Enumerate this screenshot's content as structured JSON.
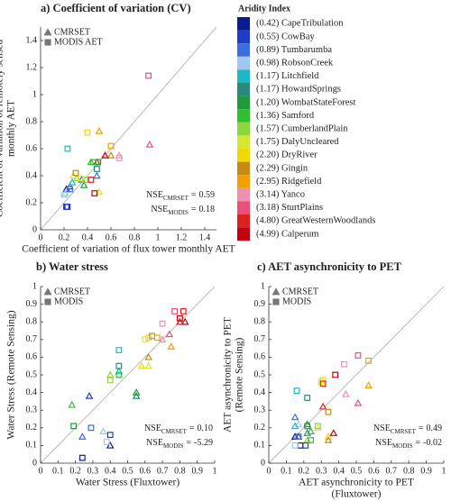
{
  "chart_data": [
    {
      "type": "scatter",
      "title": "a)   Coefficient of variation (CV)",
      "xlabel": [
        "Coefficient of variation of flux tower monthly AET"
      ],
      "ylabel": [
        "Coefficient of variation of remotely sensed",
        "monthly AET"
      ],
      "xlim": [
        0,
        1.5
      ],
      "ylim": [
        0,
        1.5
      ],
      "xticks": [
        0,
        0.2,
        0.4,
        0.6,
        0.8,
        1,
        1.2,
        1.4
      ],
      "yticks": [
        0,
        0.2,
        0.4,
        0.6,
        0.8,
        1,
        1.2,
        1.4
      ],
      "legend": "upper left",
      "series": [
        {
          "name": "CMRSET",
          "marker": "triangle",
          "color": "#777777",
          "x": [
            0.22,
            0.25,
            0.48,
            0.21,
            0.27,
            0.35,
            0.37,
            0.43,
            0.31,
            0.28,
            0.5,
            0.6,
            0.5,
            0.67,
            0.93,
            0.48,
            0.55
          ],
          "values": [
            0.3,
            0.32,
            0.4,
            0.27,
            0.35,
            0.37,
            0.33,
            0.5,
            0.38,
            0.4,
            0.28,
            0.55,
            0.73,
            0.55,
            0.63,
            0.5,
            0.55
          ]
        },
        {
          "name": "MODIS AET",
          "marker": "square",
          "color": "#777777",
          "x": [
            0.22,
            0.23,
            0.25,
            0.2,
            0.23,
            0.48,
            0.49,
            0.45,
            0.38,
            0.34,
            0.4,
            0.3,
            0.6,
            0.67,
            0.92,
            0.43,
            0.46
          ],
          "values": [
            0.17,
            0.17,
            0.3,
            0.26,
            0.6,
            0.45,
            0.5,
            0.5,
            0.37,
            0.38,
            0.72,
            0.42,
            0.62,
            0.53,
            1.14,
            0.37,
            0.27
          ]
        }
      ],
      "annotations": [
        {
          "label": "NSE",
          "subscript": "CMRSET",
          "sign": "=",
          "value": "0.59"
        },
        {
          "label": "NSE",
          "subscript": "MODIS",
          "sign": "=",
          "value": "0.18"
        }
      ]
    },
    {
      "type": "scatter",
      "title": "b) Water stress",
      "xlabel": [
        "Water Stress (Fluxtower)"
      ],
      "ylabel": [
        "Water Stress (Remote Sensing)"
      ],
      "xlim": [
        0,
        1
      ],
      "ylim": [
        0,
        1
      ],
      "xticks": [
        0,
        0.1,
        0.2,
        0.3,
        0.4,
        0.5,
        0.6,
        0.7,
        0.8,
        0.9,
        1
      ],
      "yticks": [
        0,
        0.1,
        0.2,
        0.3,
        0.4,
        0.5,
        0.6,
        0.7,
        0.8,
        0.9,
        1
      ],
      "legend": "upper left",
      "series": [
        {
          "name": "CMRSET",
          "marker": "triangle",
          "color": "#777777",
          "x": [
            0.4,
            0.28,
            0.24,
            0.36,
            0.45,
            0.55,
            0.55,
            0.18,
            0.4,
            0.62,
            0.58,
            0.62,
            0.75,
            0.7,
            0.74,
            0.8,
            0.83
          ],
          "values": [
            0.1,
            0.38,
            0.15,
            0.18,
            0.52,
            0.38,
            0.4,
            0.33,
            0.5,
            0.55,
            0.55,
            0.6,
            0.66,
            0.7,
            0.73,
            0.8,
            0.8
          ]
        },
        {
          "name": "MODIS",
          "marker": "square",
          "color": "#777777",
          "x": [
            0.24,
            0.4,
            0.29,
            0.38,
            0.45,
            0.45,
            0.19,
            0.45,
            0.4,
            0.6,
            0.62,
            0.64,
            0.67,
            0.7,
            0.77,
            0.82,
            0.8
          ],
          "values": [
            0.03,
            0.16,
            0.2,
            0.12,
            0.64,
            0.55,
            0.21,
            0.5,
            0.47,
            0.7,
            0.71,
            0.72,
            0.71,
            0.79,
            0.86,
            0.86,
            0.82
          ]
        }
      ],
      "annotations": [
        {
          "label": "NSE",
          "subscript": "CMRSET",
          "sign": "=",
          "value": "0.10"
        },
        {
          "label": "NSE",
          "subscript": "MODIS",
          "sign": "=",
          "value": "-5.29"
        }
      ]
    },
    {
      "type": "scatter",
      "title": "c) AET asynchronicity to PET",
      "xlabel": [
        "AET asynchronicity to PET",
        "(Fluxtower)"
      ],
      "ylabel": [
        "AET asynchronicity to PET",
        "(Remote Sensing)"
      ],
      "xlim": [
        0,
        1
      ],
      "ylim": [
        0,
        1
      ],
      "xticks": [
        0,
        0.1,
        0.2,
        0.3,
        0.4,
        0.5,
        0.6,
        0.7,
        0.8,
        0.9,
        1
      ],
      "yticks": [
        0,
        0.1,
        0.2,
        0.3,
        0.4,
        0.5,
        0.6,
        0.7,
        0.8,
        0.9,
        1
      ],
      "legend": "upper left",
      "series": [
        {
          "name": "CMRSET",
          "marker": "triangle",
          "color": "#777777",
          "x": [
            0.15,
            0.17,
            0.15,
            0.17,
            0.15,
            0.22,
            0.22,
            0.24,
            0.22,
            0.28,
            0.34,
            0.34,
            0.57,
            0.44,
            0.51,
            0.31,
            0.37
          ],
          "values": [
            0.15,
            0.15,
            0.26,
            0.22,
            0.21,
            0.17,
            0.22,
            0.18,
            0.13,
            0.2,
            0.15,
            0.13,
            0.44,
            0.39,
            0.34,
            0.32,
            0.17
          ]
        },
        {
          "name": "MODIS",
          "marker": "square",
          "color": "#777777",
          "x": [
            0.18,
            0.21,
            0.17,
            0.15,
            0.16,
            0.22,
            0.22,
            0.24,
            0.28,
            0.3,
            0.31,
            0.34,
            0.57,
            0.43,
            0.51,
            0.31,
            0.38
          ],
          "values": [
            0.1,
            0.1,
            0.15,
            0.1,
            0.41,
            0.37,
            0.21,
            0.13,
            0.21,
            0.46,
            0.47,
            0.29,
            0.58,
            0.56,
            0.61,
            0.45,
            0.5
          ]
        }
      ],
      "annotations": [
        {
          "label": "NSE",
          "subscript": "CMRSET",
          "sign": "=",
          "value": "0.49"
        },
        {
          "label": "NSE",
          "subscript": "MODIS",
          "sign": "=",
          "value": "-0.02"
        }
      ]
    }
  ],
  "aridity_legend": {
    "title": "Aridity Index",
    "items": [
      {
        "label": "(0.42) CapeTribulation",
        "color": "#0b1a8c"
      },
      {
        "label": "(0.55) CowBay",
        "color": "#1f3dc4"
      },
      {
        "label": "(0.89) Tumbarumba",
        "color": "#3a6de0"
      },
      {
        "label": "(0.98) RobsonCreek",
        "color": "#9ec8f0"
      },
      {
        "label": "(1.17) Litchfield",
        "color": "#1cb8c8"
      },
      {
        "label": "(1.17) HowardSprings",
        "color": "#2a8a78"
      },
      {
        "label": "(1.20) WombatStateForest",
        "color": "#1e9a3c"
      },
      {
        "label": "(1.36) Samford",
        "color": "#2ec02e"
      },
      {
        "label": "(1.57) CumberlandPlain",
        "color": "#8cd640"
      },
      {
        "label": "(1.75) DalyUncleared",
        "color": "#d8e830"
      },
      {
        "label": "(2.20) DryRiver",
        "color": "#f2d800"
      },
      {
        "label": "(2.29) Gingin",
        "color": "#c88a10"
      },
      {
        "label": "(2.95) Ridgefield",
        "color": "#f0a000"
      },
      {
        "label": "(3.14) Yanco",
        "color": "#f090b0"
      },
      {
        "label": "(3.18) SturtPlains",
        "color": "#e8507a"
      },
      {
        "label": "(4.80) GreatWesternWoodlands",
        "color": "#e02020"
      },
      {
        "label": "(4.99) Calperum",
        "color": "#c00010"
      }
    ]
  }
}
